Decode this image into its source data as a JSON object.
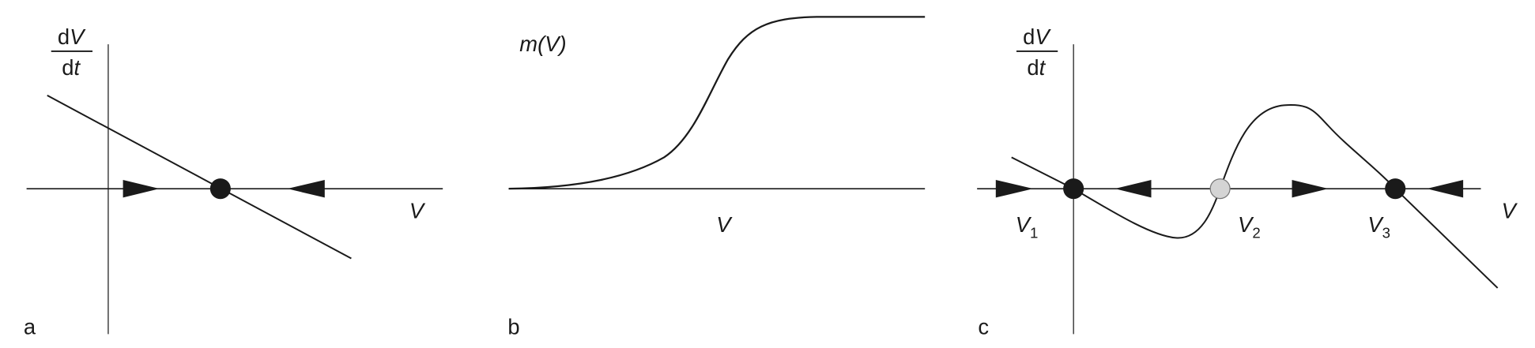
{
  "panels": [
    {
      "letter": "a",
      "y_label_num": "dV",
      "y_label_den": "dt",
      "x_label": "V"
    },
    {
      "letter": "b",
      "y_label": "m(V)",
      "x_label": "V"
    },
    {
      "letter": "c",
      "y_label_num": "dV",
      "y_label_den": "dt",
      "x_label": "V",
      "fixed_points": [
        {
          "label": "V",
          "sub": "1",
          "stability": "stable"
        },
        {
          "label": "V",
          "sub": "2",
          "stability": "unstable"
        },
        {
          "label": "V",
          "sub": "3",
          "stability": "stable"
        }
      ]
    }
  ],
  "colors": {
    "stroke": "#1a1a1a",
    "stable_fill": "#1a1a1a",
    "unstable_fill": "#d4d4d4"
  }
}
